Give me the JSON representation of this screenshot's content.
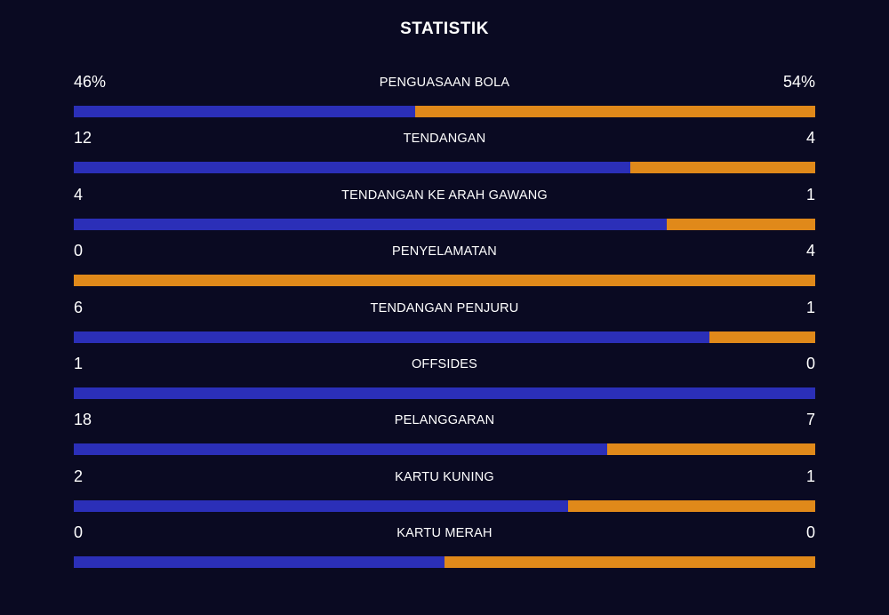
{
  "header": {
    "title": "STATISTIK"
  },
  "colors": {
    "home": "#2b2fb8",
    "away": "#e0891a",
    "background": "#0a0a22"
  },
  "stats": [
    {
      "label": "PENGUASAAN BOLA",
      "home": "46%",
      "away": "54%",
      "home_share": 0.46
    },
    {
      "label": "TENDANGAN",
      "home": "12",
      "away": "4",
      "home_share": 0.75
    },
    {
      "label": "TENDANGAN KE ARAH GAWANG",
      "home": "4",
      "away": "1",
      "home_share": 0.8
    },
    {
      "label": "PENYELAMATAN",
      "home": "0",
      "away": "4",
      "home_share": 0.0
    },
    {
      "label": "TENDANGAN PENJURU",
      "home": "6",
      "away": "1",
      "home_share": 0.857
    },
    {
      "label": "OFFSIDES",
      "home": "1",
      "away": "0",
      "home_share": 1.0
    },
    {
      "label": "PELANGGARAN",
      "home": "18",
      "away": "7",
      "home_share": 0.72
    },
    {
      "label": "KARTU KUNING",
      "home": "2",
      "away": "1",
      "home_share": 0.667
    },
    {
      "label": "KARTU MERAH",
      "home": "0",
      "away": "0",
      "home_share": 0.5
    }
  ]
}
